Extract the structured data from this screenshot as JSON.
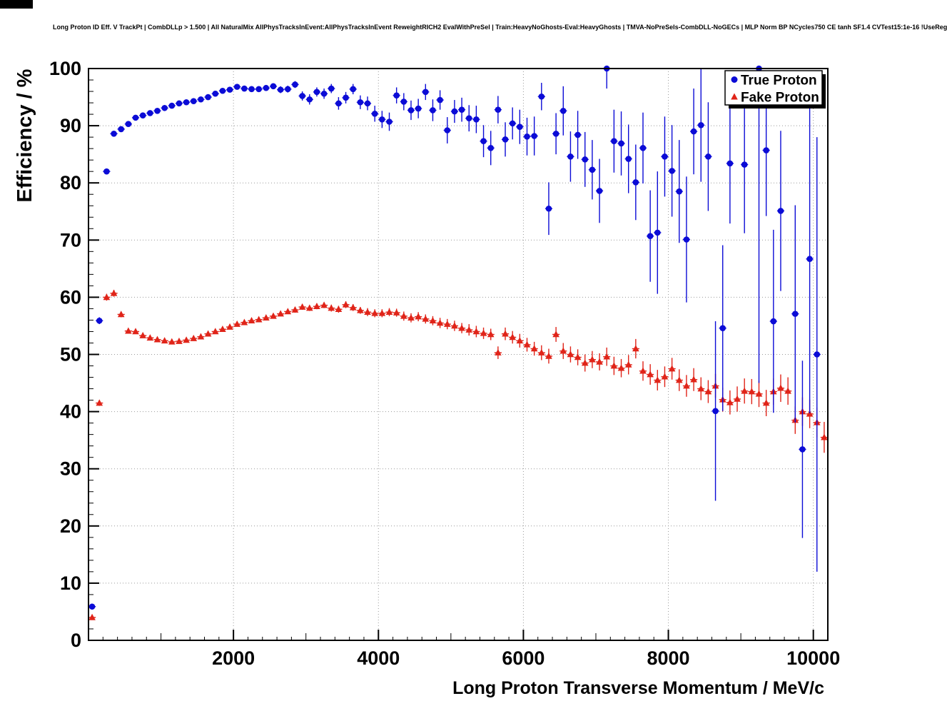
{
  "page": {
    "title": "Long Proton ID Eff. V TrackPt | CombDLLp > 1.500 | All NaturalMix AllPhysTracksInEvent:AllPhysTracksInEvent ReweightRICH2 EvalWithPreSel | Train:HeavyNoGhosts-Eval:HeavyGhosts | TMVA-NoPreSels-CombDLL-NoGECs | MLP Norm BP NCycles750 CE tanh SF1.4 CVTest15:1e-16 !UseReg"
  },
  "chart_data": {
    "type": "scatter",
    "title": "Long Proton ID Eff. V TrackPt | CombDLLp > 1.500 | All NaturalMix AllPhysTracksInEvent:AllPhysTracksInEvent ReweightRICH2 EvalWithPreSel | Train:HeavyNoGhosts-Eval:HeavyGhosts | TMVA-NoPreSels-CombDLL-NoGECs | MLP Norm BP NCycles750 CE tanh SF1.4 CVTest15:1e-16 !UseReg",
    "xlabel": "Long Proton Transverse Momentum / MeV/c",
    "ylabel": "Efficiency / %",
    "xlim": [
      0,
      10200
    ],
    "ylim": [
      0,
      100
    ],
    "grid": "dotted",
    "bin_half_width": 50,
    "x_minor_step": 200,
    "y_minor_step": 2,
    "colors": {
      "grid": "#999999",
      "frame": "#000000",
      "true_proton": "#0b0bd6",
      "fake_proton": "#e02419"
    },
    "x_ticks": {
      "values": [
        2000,
        4000,
        6000,
        8000,
        10000
      ],
      "labels": [
        "2000",
        "4000",
        "6000",
        "8000",
        "10000"
      ]
    },
    "y_ticks": {
      "values": [
        0,
        10,
        20,
        30,
        40,
        50,
        60,
        70,
        80,
        90,
        100
      ],
      "labels": [
        "0",
        "10",
        "20",
        "30",
        "40",
        "50",
        "60",
        "70",
        "80",
        "90",
        "100"
      ]
    },
    "legend": {
      "position": "top-right",
      "entries": [
        {
          "label": "True Proton",
          "marker": "circle",
          "color": "#0b0bd6"
        },
        {
          "label": "Fake Proton",
          "marker": "triangle",
          "color": "#e02419"
        }
      ]
    },
    "series": [
      {
        "name": "True Proton",
        "marker": "circle",
        "color": "#0b0bd6",
        "points": [
          [
            50,
            5.9,
            0.4
          ],
          [
            150,
            55.9,
            0.6
          ],
          [
            250,
            82.0,
            0.5
          ],
          [
            350,
            88.6,
            0.4
          ],
          [
            450,
            89.4,
            0.4
          ],
          [
            550,
            90.3,
            0.4
          ],
          [
            650,
            91.4,
            0.4
          ],
          [
            750,
            91.8,
            0.4
          ],
          [
            850,
            92.2,
            0.4
          ],
          [
            950,
            92.6,
            0.4
          ],
          [
            1050,
            93.1,
            0.4
          ],
          [
            1150,
            93.5,
            0.4
          ],
          [
            1250,
            93.9,
            0.4
          ],
          [
            1350,
            94.1,
            0.4
          ],
          [
            1450,
            94.3,
            0.4
          ],
          [
            1550,
            94.6,
            0.4
          ],
          [
            1650,
            95.0,
            0.4
          ],
          [
            1750,
            95.6,
            0.4
          ],
          [
            1850,
            96.1,
            0.4
          ],
          [
            1950,
            96.3,
            0.4
          ],
          [
            2050,
            96.8,
            0.4
          ],
          [
            2150,
            96.5,
            0.4
          ],
          [
            2250,
            96.4,
            0.5
          ],
          [
            2350,
            96.4,
            0.5
          ],
          [
            2450,
            96.6,
            0.5
          ],
          [
            2550,
            96.9,
            0.5
          ],
          [
            2650,
            96.3,
            0.6
          ],
          [
            2750,
            96.4,
            0.6
          ],
          [
            2850,
            97.2,
            0.6
          ],
          [
            2950,
            95.2,
            0.8
          ],
          [
            3050,
            94.6,
            0.9
          ],
          [
            3150,
            95.9,
            0.8
          ],
          [
            3250,
            95.6,
            0.9
          ],
          [
            3350,
            96.5,
            0.8
          ],
          [
            3450,
            93.9,
            1.1
          ],
          [
            3550,
            94.9,
            1.0
          ],
          [
            3650,
            96.4,
            0.9
          ],
          [
            3750,
            94.1,
            1.2
          ],
          [
            3850,
            93.9,
            1.2
          ],
          [
            3950,
            92.1,
            1.4
          ],
          [
            4050,
            91.1,
            1.5
          ],
          [
            4150,
            90.7,
            1.6
          ],
          [
            4250,
            95.3,
            1.4
          ],
          [
            4350,
            94.2,
            1.5
          ],
          [
            4450,
            92.7,
            1.7
          ],
          [
            4550,
            93.0,
            1.7
          ],
          [
            4650,
            95.9,
            1.4
          ],
          [
            4750,
            92.7,
            1.9
          ],
          [
            4850,
            94.5,
            1.7
          ],
          [
            4950,
            89.2,
            2.3
          ],
          [
            5050,
            92.5,
            2.0
          ],
          [
            5150,
            92.8,
            2.1
          ],
          [
            5250,
            91.3,
            2.3
          ],
          [
            5350,
            91.1,
            2.4
          ],
          [
            5450,
            87.3,
            2.8
          ],
          [
            5550,
            86.1,
            3.0
          ],
          [
            5650,
            92.8,
            2.4
          ],
          [
            5750,
            87.6,
            3.0
          ],
          [
            5850,
            90.4,
            2.8
          ],
          [
            5950,
            89.8,
            3.0
          ],
          [
            6050,
            88.1,
            3.3
          ],
          [
            6150,
            88.2,
            3.4
          ],
          [
            6250,
            95.1,
            2.4
          ],
          [
            6350,
            75.5,
            4.6
          ],
          [
            6450,
            88.6,
            3.6
          ],
          [
            6550,
            92.6,
            4.3
          ],
          [
            6650,
            84.6,
            4.4
          ],
          [
            6750,
            88.4,
            4.2
          ],
          [
            6850,
            84.1,
            4.8
          ],
          [
            6950,
            82.3,
            5.2
          ],
          [
            7050,
            78.6,
            5.6
          ],
          [
            7150,
            100.0,
            3.5
          ],
          [
            7250,
            87.3,
            5.5
          ],
          [
            7350,
            86.9,
            5.6
          ],
          [
            7450,
            84.2,
            6.0
          ],
          [
            7550,
            80.1,
            6.6
          ],
          [
            7650,
            86.1,
            6.2
          ],
          [
            7750,
            70.7,
            8.0
          ],
          [
            7850,
            71.3,
            10.7
          ],
          [
            7950,
            84.6,
            7.0
          ],
          [
            8050,
            82.1,
            8.0
          ],
          [
            8150,
            78.5,
            9.0
          ],
          [
            8250,
            70.1,
            11.0
          ],
          [
            8350,
            89.0,
            7.5
          ],
          [
            8450,
            90.1,
            9.9
          ],
          [
            8550,
            84.6,
            9.5
          ],
          [
            8650,
            40.1,
            15.7
          ],
          [
            8750,
            54.6,
            14.5
          ],
          [
            8850,
            83.4,
            10.5
          ],
          [
            9050,
            83.2,
            12.0
          ],
          [
            9250,
            100.0,
            55.0
          ],
          [
            9350,
            85.7,
            11.5
          ],
          [
            9450,
            55.8,
            16.0
          ],
          [
            9550,
            75.1,
            14.0
          ],
          [
            9750,
            57.1,
            19.0
          ],
          [
            9850,
            33.4,
            15.5
          ],
          [
            9950,
            66.7,
            27.0
          ],
          [
            10050,
            50.0,
            38.0
          ]
        ]
      },
      {
        "name": "Fake Proton",
        "marker": "triangle",
        "color": "#e02419",
        "points": [
          [
            50,
            4.0,
            0.3
          ],
          [
            150,
            41.5,
            0.5
          ],
          [
            250,
            60.0,
            0.6
          ],
          [
            350,
            60.7,
            0.6
          ],
          [
            450,
            57.0,
            0.5
          ],
          [
            550,
            54.1,
            0.4
          ],
          [
            650,
            54.0,
            0.4
          ],
          [
            750,
            53.3,
            0.3
          ],
          [
            850,
            52.9,
            0.3
          ],
          [
            950,
            52.6,
            0.3
          ],
          [
            1050,
            52.4,
            0.3
          ],
          [
            1150,
            52.2,
            0.3
          ],
          [
            1250,
            52.3,
            0.3
          ],
          [
            1350,
            52.5,
            0.3
          ],
          [
            1450,
            52.8,
            0.3
          ],
          [
            1550,
            53.1,
            0.3
          ],
          [
            1650,
            53.6,
            0.3
          ],
          [
            1750,
            54.0,
            0.3
          ],
          [
            1850,
            54.4,
            0.3
          ],
          [
            1950,
            54.8,
            0.3
          ],
          [
            2050,
            55.3,
            0.3
          ],
          [
            2150,
            55.6,
            0.3
          ],
          [
            2250,
            55.9,
            0.4
          ],
          [
            2350,
            56.1,
            0.4
          ],
          [
            2450,
            56.4,
            0.4
          ],
          [
            2550,
            56.7,
            0.4
          ],
          [
            2650,
            57.1,
            0.4
          ],
          [
            2750,
            57.5,
            0.4
          ],
          [
            2850,
            57.8,
            0.5
          ],
          [
            2950,
            58.3,
            0.5
          ],
          [
            3050,
            58.1,
            0.5
          ],
          [
            3150,
            58.4,
            0.5
          ],
          [
            3250,
            58.6,
            0.5
          ],
          [
            3350,
            58.1,
            0.6
          ],
          [
            3450,
            57.9,
            0.6
          ],
          [
            3550,
            58.7,
            0.6
          ],
          [
            3650,
            58.2,
            0.6
          ],
          [
            3750,
            57.7,
            0.6
          ],
          [
            3850,
            57.4,
            0.7
          ],
          [
            3950,
            57.2,
            0.7
          ],
          [
            4050,
            57.2,
            0.7
          ],
          [
            4150,
            57.4,
            0.7
          ],
          [
            4250,
            57.3,
            0.7
          ],
          [
            4350,
            56.7,
            0.8
          ],
          [
            4450,
            56.4,
            0.8
          ],
          [
            4550,
            56.6,
            0.8
          ],
          [
            4650,
            56.2,
            0.8
          ],
          [
            4750,
            55.9,
            0.8
          ],
          [
            4850,
            55.5,
            0.9
          ],
          [
            4950,
            55.3,
            0.9
          ],
          [
            5050,
            55.0,
            0.9
          ],
          [
            5150,
            54.6,
            0.9
          ],
          [
            5250,
            54.3,
            1.0
          ],
          [
            5350,
            54.0,
            1.0
          ],
          [
            5450,
            53.7,
            1.0
          ],
          [
            5550,
            53.5,
            1.0
          ],
          [
            5650,
            50.3,
            1.1
          ],
          [
            5750,
            53.6,
            1.1
          ],
          [
            5850,
            53.0,
            1.1
          ],
          [
            5950,
            52.4,
            1.2
          ],
          [
            6050,
            51.7,
            1.2
          ],
          [
            6150,
            51.0,
            1.2
          ],
          [
            6250,
            50.3,
            1.3
          ],
          [
            6350,
            49.7,
            1.3
          ],
          [
            6450,
            53.5,
            1.3
          ],
          [
            6550,
            50.6,
            1.4
          ],
          [
            6650,
            50.0,
            1.4
          ],
          [
            6750,
            49.5,
            1.4
          ],
          [
            6850,
            48.5,
            1.5
          ],
          [
            6950,
            49.1,
            1.5
          ],
          [
            7050,
            48.7,
            1.5
          ],
          [
            7150,
            49.6,
            1.6
          ],
          [
            7250,
            48.0,
            1.6
          ],
          [
            7350,
            47.6,
            1.6
          ],
          [
            7450,
            48.2,
            1.7
          ],
          [
            7550,
            51.0,
            1.7
          ],
          [
            7650,
            47.1,
            1.7
          ],
          [
            7750,
            46.5,
            1.8
          ],
          [
            7850,
            45.5,
            1.8
          ],
          [
            7950,
            46.1,
            1.8
          ],
          [
            8050,
            47.5,
            1.9
          ],
          [
            8150,
            45.5,
            1.9
          ],
          [
            8250,
            44.5,
            1.9
          ],
          [
            8350,
            45.6,
            2.0
          ],
          [
            8450,
            44.0,
            2.0
          ],
          [
            8550,
            43.5,
            2.0
          ],
          [
            8650,
            44.5,
            2.1
          ],
          [
            8750,
            42.1,
            2.1
          ],
          [
            8850,
            41.6,
            2.1
          ],
          [
            8950,
            42.2,
            2.2
          ],
          [
            9050,
            43.6,
            2.2
          ],
          [
            9150,
            43.5,
            2.2
          ],
          [
            9250,
            43.1,
            2.3
          ],
          [
            9350,
            41.5,
            2.3
          ],
          [
            9450,
            43.5,
            2.3
          ],
          [
            9550,
            44.1,
            2.4
          ],
          [
            9650,
            43.6,
            2.4
          ],
          [
            9750,
            38.5,
            2.4
          ],
          [
            9850,
            40.0,
            2.5
          ],
          [
            9950,
            39.6,
            2.5
          ],
          [
            10050,
            38.1,
            2.6
          ],
          [
            10150,
            35.5,
            2.7
          ]
        ]
      }
    ]
  }
}
